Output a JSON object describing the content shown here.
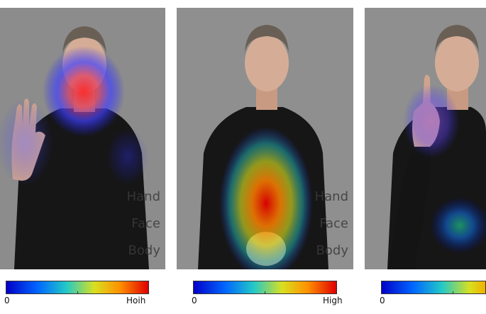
{
  "panels": [
    {
      "labels": [
        "Hand",
        "Face",
        "Body"
      ]
    },
    {
      "labels": [
        "Hand",
        "Face",
        "Body"
      ]
    },
    {
      "labels": []
    }
  ],
  "colorbars": [
    {
      "min_label": "0",
      "max_label": "Hoih"
    },
    {
      "min_label": "0",
      "max_label": "High"
    },
    {
      "min_label": "0",
      "max_label": ""
    }
  ],
  "colors": {
    "background": "#8e8e8e",
    "sweater": "#161616",
    "skin": "#d5ad96",
    "colormap": [
      "#0000c8",
      "#0066ff",
      "#22c8c8",
      "#d8e020",
      "#ff9000",
      "#e00000"
    ]
  }
}
